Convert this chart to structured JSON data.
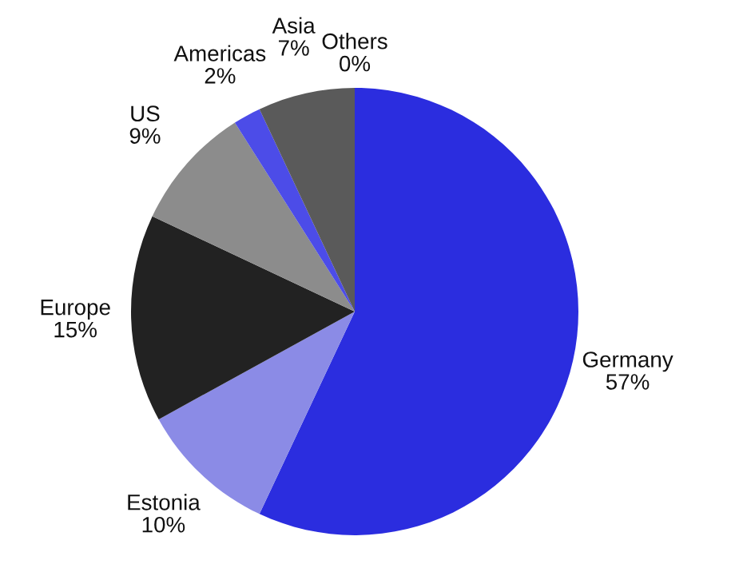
{
  "chart_data": {
    "type": "pie",
    "categories": [
      "Germany",
      "Estonia",
      "Europe",
      "US",
      "Americas",
      "Asia",
      "Others"
    ],
    "values": [
      57,
      10,
      15,
      9,
      2,
      7,
      0
    ],
    "value_labels": [
      "57%",
      "10%",
      "15%",
      "9%",
      "2%",
      "7%",
      "0%"
    ],
    "colors": [
      "#2b2ddf",
      "#8b8be6",
      "#222222",
      "#8c8c8c",
      "#4c4ce8",
      "#5a5a5a",
      "#aaaaaa"
    ],
    "legend": false
  }
}
